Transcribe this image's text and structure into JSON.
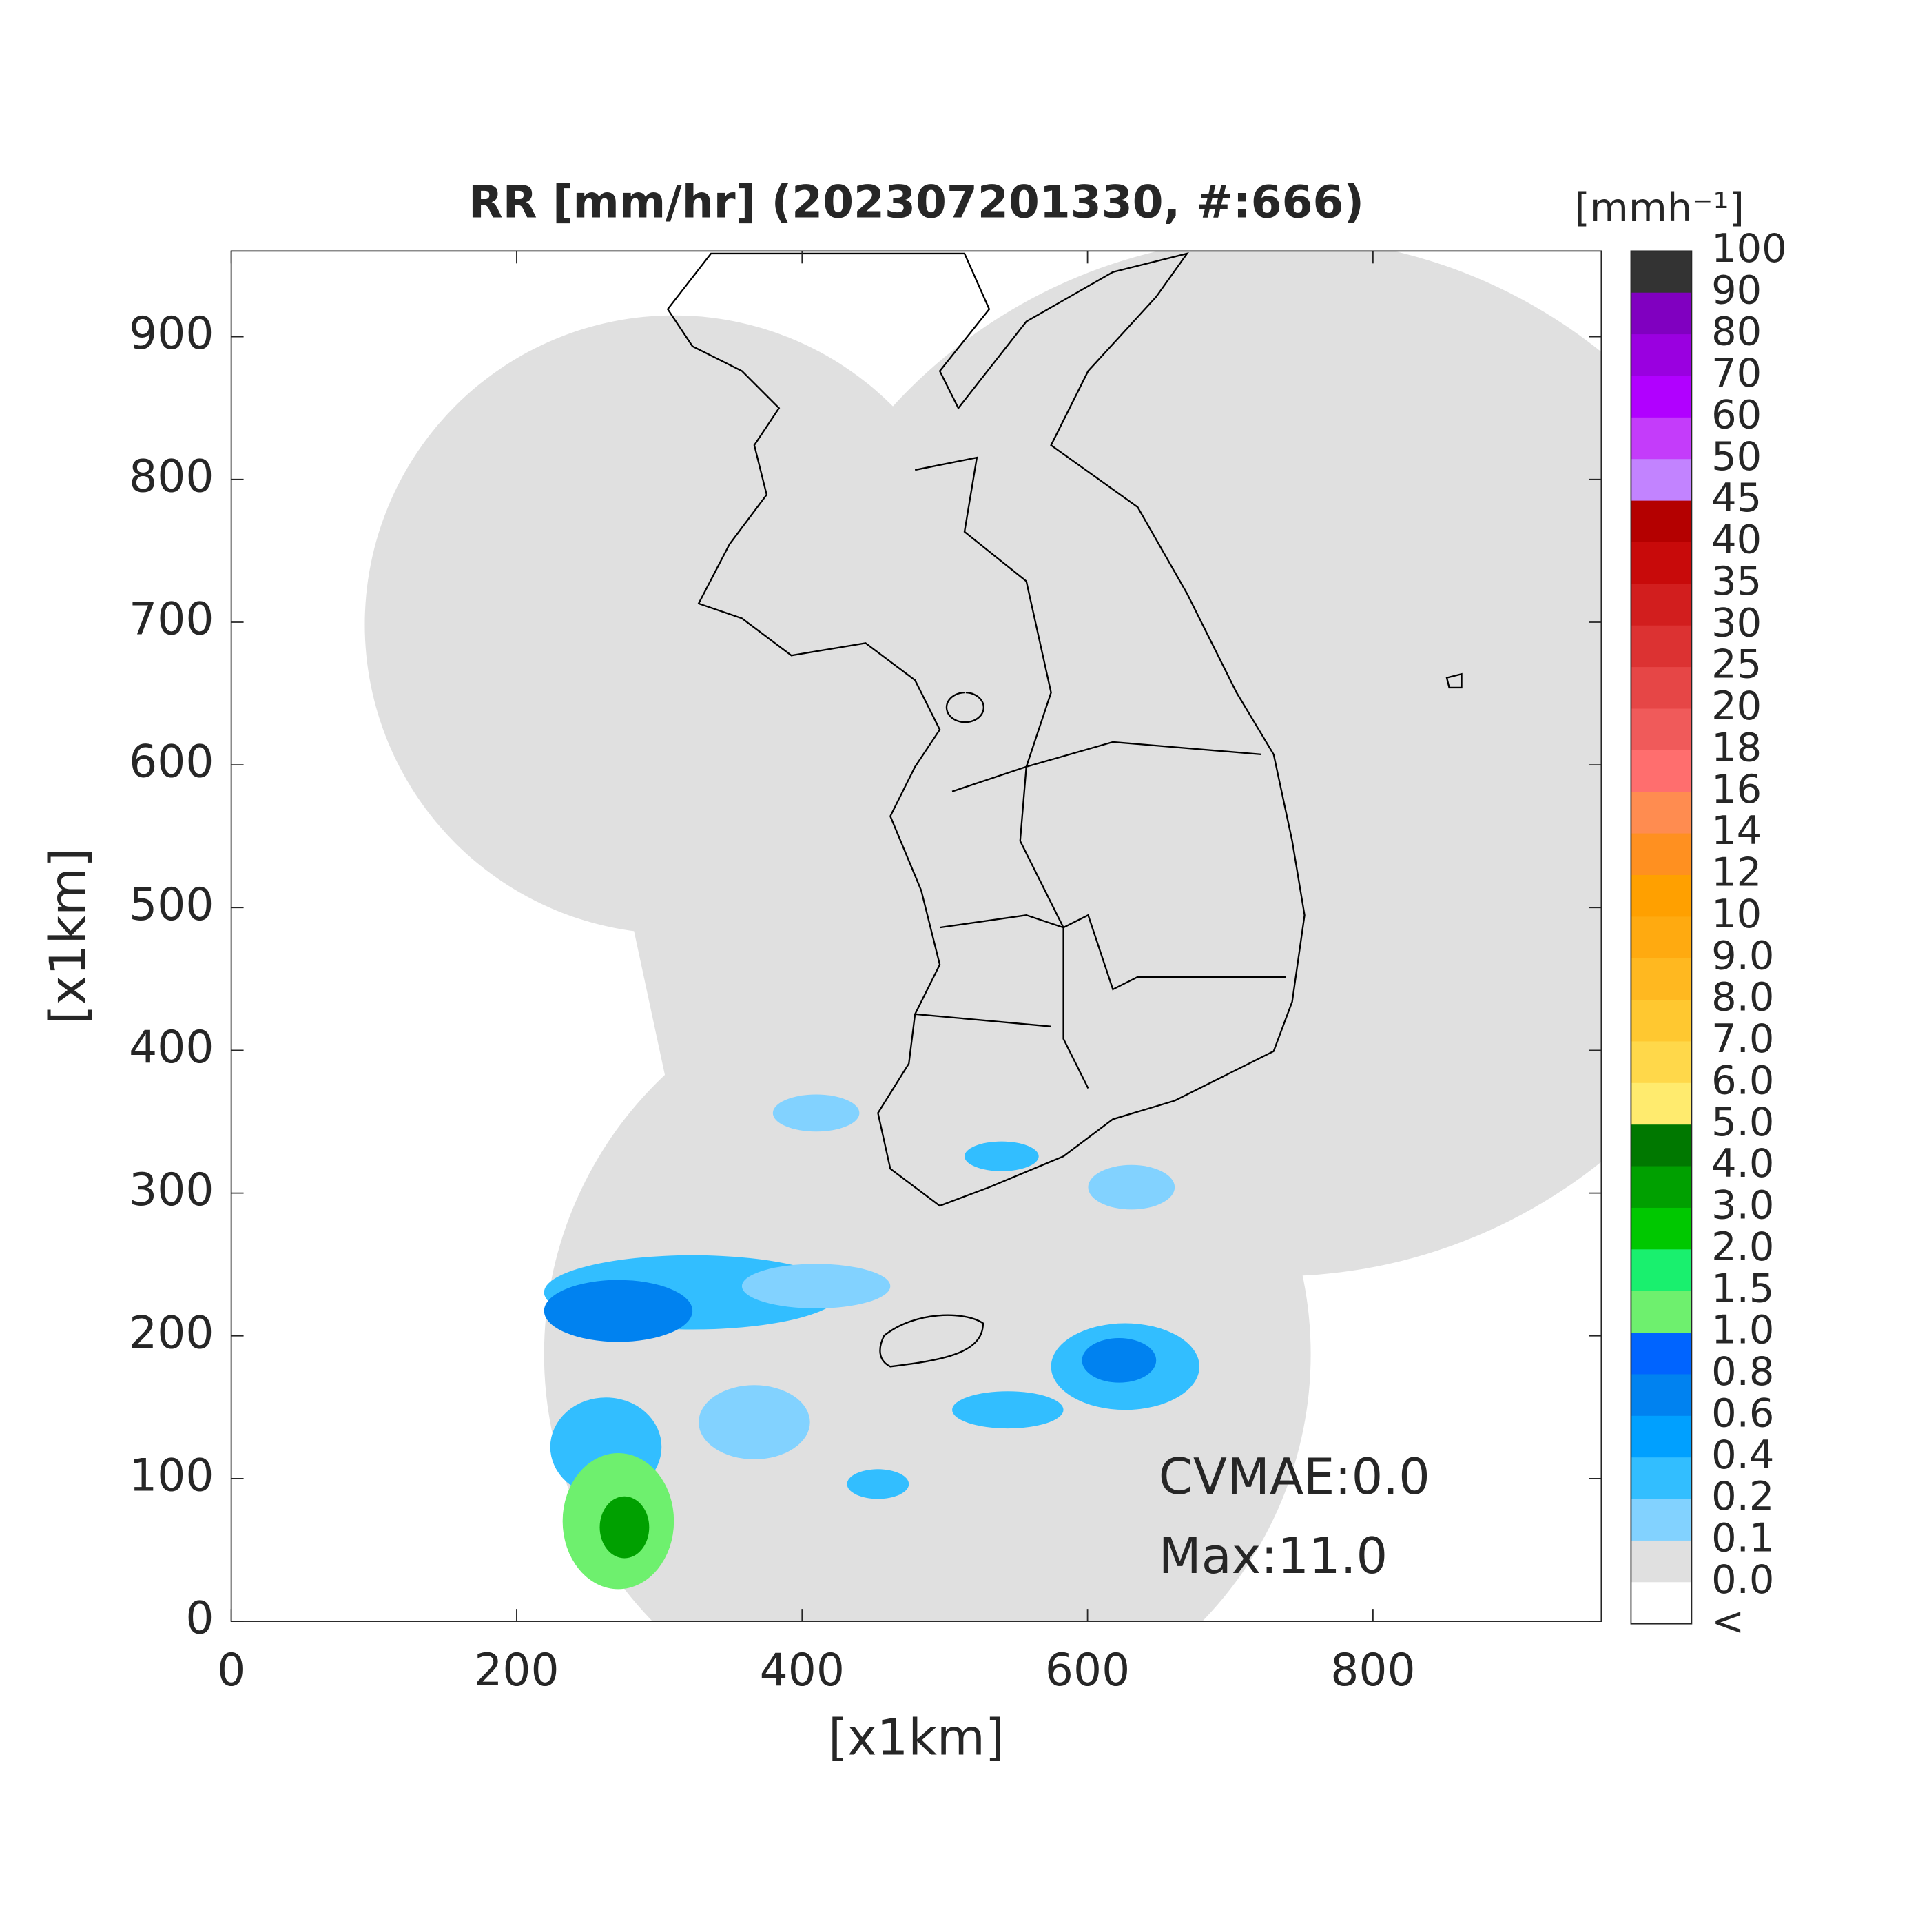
{
  "chart_data": {
    "type": "map",
    "title": "RR [mm/hr] (202307201330, #:666)",
    "x_label": "[x1km]",
    "y_label": "[x1km]",
    "xlim": [
      0,
      960
    ],
    "ylim": [
      0,
      960
    ],
    "xticks": [
      0,
      200,
      400,
      600,
      800
    ],
    "yticks": [
      0,
      100,
      200,
      300,
      400,
      500,
      600,
      700,
      800,
      900
    ],
    "colorbar": {
      "unit": "[mmh⁻¹]",
      "labels": [
        "100",
        "90",
        "80",
        "70",
        "60",
        "50",
        "45",
        "40",
        "35",
        "30",
        "25",
        "20",
        "18",
        "16",
        "14",
        "12",
        "10",
        "9.0",
        "8.0",
        "7.0",
        "6.0",
        "5.0",
        "4.0",
        "3.0",
        "2.0",
        "1.5",
        "1.0",
        "0.8",
        "0.6",
        "0.4",
        "0.2",
        "0.1",
        "0.0",
        "<"
      ],
      "colors": [
        "#333333",
        "#8000c0",
        "#9a00e0",
        "#b100ff",
        "#c43cfa",
        "#c283ff",
        "#b40000",
        "#c80a0a",
        "#d21e1e",
        "#dc3232",
        "#e64646",
        "#f05a5a",
        "#ff6e6e",
        "#ff8c50",
        "#ff9020",
        "#ffa000",
        "#ffaa10",
        "#ffb820",
        "#ffc830",
        "#ffd84a",
        "#ffeb6e",
        "#007800",
        "#00a000",
        "#00c800",
        "#19f06e",
        "#6ef06e",
        "#0064ff",
        "#0082f0",
        "#00a0ff",
        "#32beff",
        "#82d2ff",
        "#e0e0e0",
        "#ffffff"
      ]
    },
    "annotations": [
      "CVMAE:0.0",
      "Max:11.0"
    ]
  }
}
